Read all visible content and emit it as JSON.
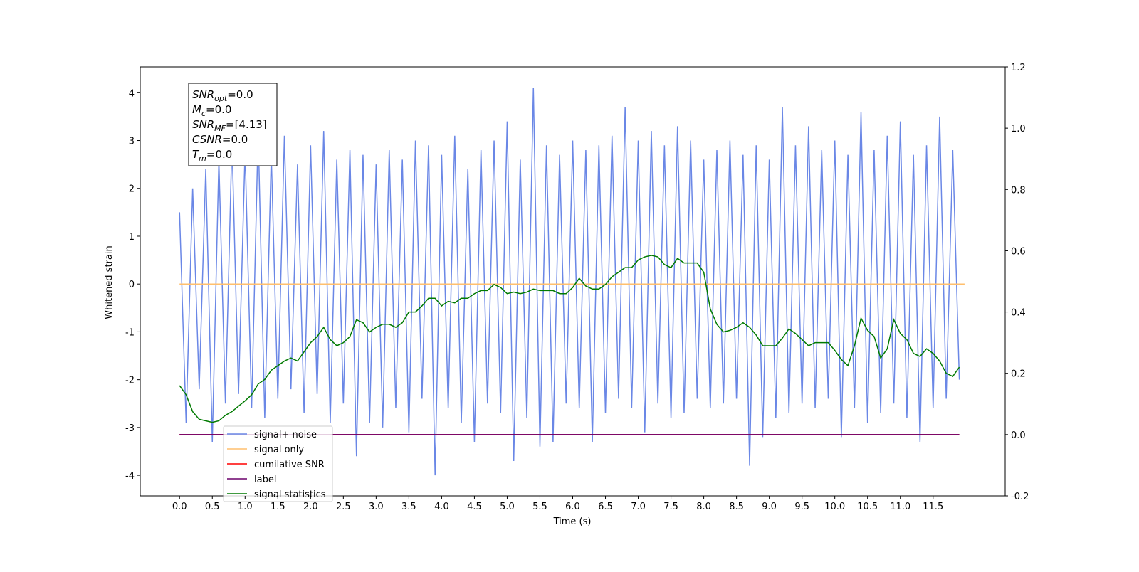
{
  "chart_data": {
    "type": "line",
    "xlabel": "Time (s)",
    "ylabel": "Whitened strain",
    "xlim": [
      -0.6,
      12.6
    ],
    "ylim": [
      -4.43,
      4.54
    ],
    "y2lim": [
      -0.2,
      1.2
    ],
    "xticks": [
      {
        "value": 0,
        "label": "0.0"
      },
      0.5,
      {
        "value": 1,
        "label": "1.0"
      },
      1.5,
      {
        "value": 2,
        "label": "2.0"
      },
      2.5,
      {
        "value": 3,
        "label": "3.0"
      },
      3.5,
      {
        "value": 4,
        "label": "4.0"
      },
      4.5,
      {
        "value": 5,
        "label": "5.0"
      },
      5.5,
      {
        "value": 6,
        "label": "6.0"
      },
      6.5,
      {
        "value": 7,
        "label": "7.0"
      },
      7.5,
      {
        "value": 8,
        "label": "8.0"
      },
      8.5,
      {
        "value": 9,
        "label": "9.0"
      },
      9.5,
      {
        "value": 10,
        "label": "10.0"
      },
      10.5,
      {
        "value": 11,
        "label": "11.0"
      },
      11.5
    ],
    "yticks": [
      -4,
      -3,
      -2,
      -1,
      0,
      1,
      2,
      3,
      4
    ],
    "y2ticks": [
      -0.2,
      {
        "value": 0,
        "label": "0.0"
      },
      0.2,
      0.4,
      0.6,
      0.8,
      {
        "value": 1,
        "label": "1.0"
      },
      1.2
    ],
    "annotations": [
      {
        "main": "SNR",
        "sub": "opt",
        "rest": "=0.0"
      },
      {
        "main": "M",
        "sub": "c",
        "rest": "=0.0"
      },
      {
        "main": "SNR",
        "sub": "MF",
        "rest": "=[4.13]"
      },
      {
        "main": "CSNR",
        "sub": "",
        "rest": "=0.0"
      },
      {
        "main": "T",
        "sub": "m",
        "rest": "=0.0"
      }
    ],
    "x": [
      0,
      0.1,
      0.2,
      0.3,
      0.4,
      0.5,
      0.6,
      0.7,
      0.8,
      0.9,
      1,
      1.1,
      1.2,
      1.3,
      1.4,
      1.5,
      1.6,
      1.7,
      1.8,
      1.9,
      2,
      2.1,
      2.2,
      2.3,
      2.4,
      2.5,
      2.6,
      2.7,
      2.8,
      2.9,
      3,
      3.1,
      3.2,
      3.3,
      3.4,
      3.5,
      3.6,
      3.7,
      3.8,
      3.9,
      4,
      4.1,
      4.2,
      4.3,
      4.4,
      4.5,
      4.6,
      4.7,
      4.8,
      4.9,
      5,
      5.1,
      5.2,
      5.3,
      5.4,
      5.5,
      5.6,
      5.7,
      5.8,
      5.9,
      6,
      6.1,
      6.2,
      6.3,
      6.4,
      6.5,
      6.6,
      6.7,
      6.8,
      6.9,
      7,
      7.1,
      7.2,
      7.3,
      7.4,
      7.5,
      7.6,
      7.7,
      7.8,
      7.9,
      8,
      8.1,
      8.2,
      8.3,
      8.4,
      8.5,
      8.6,
      8.7,
      8.8,
      8.9,
      9,
      9.1,
      9.2,
      9.3,
      9.4,
      9.5,
      9.6,
      9.7,
      9.8,
      9.9,
      10,
      10.1,
      10.2,
      10.3,
      10.4,
      10.5,
      10.6,
      10.7,
      10.8,
      10.9,
      11,
      11.1,
      11.2,
      11.3,
      11.4,
      11.5,
      11.6,
      11.7,
      11.8,
      11.9
    ],
    "series": [
      {
        "name": "signal+ noise",
        "color": "#6a87e6",
        "axis": "y",
        "values": [
          1.5,
          -2.9,
          2.0,
          -2.2,
          2.4,
          -3.3,
          2.6,
          -2.5,
          3.0,
          -2.3,
          2.8,
          -2.6,
          3.2,
          -2.8,
          2.7,
          -2.4,
          3.1,
          -2.2,
          2.5,
          -2.7,
          2.9,
          -2.3,
          3.2,
          -2.9,
          2.6,
          -2.5,
          2.8,
          -3.6,
          2.7,
          -2.9,
          2.5,
          -3.0,
          2.8,
          -2.6,
          2.6,
          -3.1,
          3.0,
          -2.4,
          2.9,
          -4.0,
          2.7,
          -2.6,
          3.1,
          -2.9,
          2.4,
          -3.3,
          2.8,
          -2.5,
          3.0,
          -2.7,
          3.4,
          -3.7,
          2.6,
          -2.8,
          4.1,
          -3.4,
          2.9,
          -3.3,
          2.7,
          -2.5,
          3.0,
          -2.6,
          2.8,
          -3.3,
          2.9,
          -2.7,
          3.1,
          -2.4,
          3.7,
          -2.6,
          3.0,
          -3.1,
          3.2,
          -2.5,
          2.9,
          -2.8,
          3.3,
          -2.7,
          3.0,
          -2.4,
          2.6,
          -2.6,
          2.8,
          -2.5,
          3.0,
          -2.4,
          2.7,
          -3.8,
          2.9,
          -3.2,
          2.6,
          -2.8,
          3.7,
          -2.7,
          2.9,
          -2.5,
          3.3,
          -2.6,
          2.8,
          -2.4,
          3.0,
          -3.2,
          2.7,
          -2.6,
          3.6,
          -2.9,
          2.8,
          -2.7,
          3.1,
          -2.5,
          3.4,
          -2.8,
          2.7,
          -3.3,
          2.9,
          -2.6,
          3.5,
          -2.4,
          2.8,
          -2.0
        ]
      },
      {
        "name": "signal only",
        "color": "#ffbf6e",
        "axis": "y",
        "x": [
          0,
          11.98
        ],
        "values": [
          0,
          0
        ]
      },
      {
        "name": "cumilative SNR",
        "color": "#ff0000",
        "axis": "y2",
        "x": [
          0,
          11.9
        ],
        "values": [
          0,
          0
        ]
      },
      {
        "name": "label",
        "color": "#6b006b",
        "axis": "y2",
        "x": [
          0,
          11.9
        ],
        "values": [
          0,
          0
        ]
      },
      {
        "name": "signal statistics",
        "color": "#007a00",
        "axis": "y2",
        "values": [
          0.16,
          0.13,
          0.075,
          0.05,
          0.045,
          0.04,
          0.045,
          0.063,
          0.075,
          0.093,
          0.11,
          0.13,
          0.165,
          0.18,
          0.21,
          0.225,
          0.24,
          0.25,
          0.24,
          0.27,
          0.3,
          0.32,
          0.35,
          0.31,
          0.29,
          0.3,
          0.32,
          0.375,
          0.365,
          0.335,
          0.35,
          0.36,
          0.36,
          0.35,
          0.365,
          0.4,
          0.4,
          0.42,
          0.445,
          0.445,
          0.42,
          0.435,
          0.43,
          0.445,
          0.445,
          0.46,
          0.47,
          0.47,
          0.49,
          0.48,
          0.46,
          0.465,
          0.46,
          0.465,
          0.475,
          0.47,
          0.47,
          0.47,
          0.46,
          0.46,
          0.48,
          0.51,
          0.485,
          0.475,
          0.475,
          0.49,
          0.515,
          0.53,
          0.545,
          0.545,
          0.57,
          0.58,
          0.585,
          0.58,
          0.555,
          0.545,
          0.575,
          0.56,
          0.56,
          0.56,
          0.53,
          0.41,
          0.36,
          0.335,
          0.34,
          0.35,
          0.365,
          0.35,
          0.325,
          0.29,
          0.29,
          0.29,
          0.315,
          0.345,
          0.33,
          0.31,
          0.29,
          0.3,
          0.3,
          0.3,
          0.275,
          0.245,
          0.225,
          0.29,
          0.38,
          0.34,
          0.32,
          0.25,
          0.28,
          0.375,
          0.33,
          0.31,
          0.265,
          0.255,
          0.28,
          0.265,
          0.24,
          0.2,
          0.19,
          0.22
        ]
      }
    ],
    "legend": "lower left"
  }
}
